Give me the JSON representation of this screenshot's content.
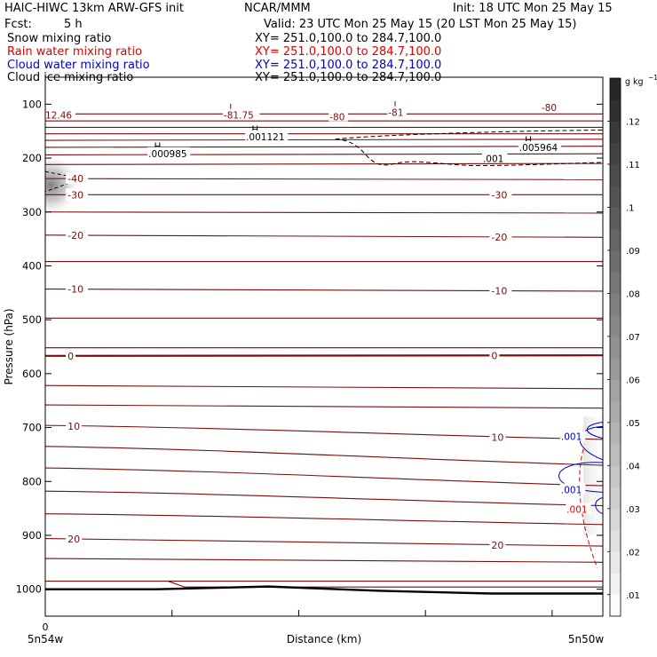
{
  "header": {
    "model": "HAIC-HIWC 13km ARW-GFS init",
    "org": "NCAR/MMM",
    "init": "Init: 18 UTC Mon 25 May 15",
    "fcst_label": "Fcst:",
    "fcst_value": "5 h",
    "valid": "Valid: 23 UTC Mon 25 May 15 (20 LST Mon 25 May 15)"
  },
  "legend_lines": [
    {
      "name": "Snow mixing ratio",
      "xy": "XY= 251.0,100.0 to 284.7,100.0",
      "color": "#000000"
    },
    {
      "name": "Rain water mixing ratio",
      "xy": "XY= 251.0,100.0 to 284.7,100.0",
      "color": "#dd0000"
    },
    {
      "name": "Cloud water mixing ratio",
      "xy": "XY= 251.0,100.0 to 284.7,100.0",
      "color": "#0000cc"
    },
    {
      "name": "Cloud ice mixing ratio",
      "xy": "XY= 251.0,100.0 to 284.7,100.0",
      "color": "#000000"
    }
  ],
  "chart_data": {
    "type": "cross-section",
    "ylabel": "Pressure (hPa)",
    "xlabel": "Distance (km)",
    "x_left_tick": "0",
    "x_left_label": "5n54w",
    "x_right_label": "5n50w",
    "y_ticks": [
      100,
      200,
      300,
      400,
      500,
      600,
      700,
      800,
      900,
      1000
    ],
    "ylim": [
      50,
      1050
    ],
    "temperature_color": "#7a0d0d",
    "temperature_isotherms": [
      {
        "p": [
          118,
          118
        ],
        "label_left": "",
        "label_right": ""
      },
      {
        "p": [
          131,
          131
        ],
        "label_left": "",
        "label_right": ""
      },
      {
        "p": [
          143,
          143
        ],
        "label_left": "",
        "label_right": ""
      },
      {
        "p": [
          155,
          155
        ],
        "label_left": "",
        "label_right": ""
      },
      {
        "p": [
          167,
          165
        ],
        "label_left": "",
        "label_right": ""
      },
      {
        "p": [
          180,
          178
        ],
        "label_left": "",
        "label_right": ""
      },
      {
        "p": [
          194,
          192
        ],
        "label_left": "",
        "label_right": ""
      },
      {
        "p": [
          212,
          210
        ],
        "label_left": "",
        "label_right": ""
      },
      {
        "p": [
          238,
          240
        ],
        "label_left": "-40",
        "label_right": ""
      },
      {
        "p": [
          268,
          268
        ],
        "label_left": "-30",
        "label_right": "-30"
      },
      {
        "p": [
          300,
          302
        ],
        "label_left": "",
        "label_right": ""
      },
      {
        "p": [
          343,
          347
        ],
        "label_left": "-20",
        "label_right": "-20"
      },
      {
        "p": [
          392,
          392
        ],
        "label_left": "",
        "label_right": ""
      },
      {
        "p": [
          443,
          447
        ],
        "label_left": "-10",
        "label_right": "-10"
      },
      {
        "p": [
          497,
          497
        ],
        "label_left": "",
        "label_right": ""
      },
      {
        "p": [
          552,
          552
        ],
        "label_left": "",
        "label_right": ""
      },
      {
        "p": [
          567,
          566
        ],
        "label_left": "0",
        "label_right": "0",
        "bold": true
      },
      {
        "p": [
          622,
          628
        ],
        "label_left": "",
        "label_right": ""
      },
      {
        "p": [
          658,
          664
        ],
        "label_left": "",
        "label_right": ""
      },
      {
        "p": [
          696,
          722
        ],
        "label_left": "10",
        "label_right": "10"
      },
      {
        "p": [
          735,
          770
        ],
        "label_left": "",
        "label_right": ""
      },
      {
        "p": [
          775,
          808
        ],
        "label_left": "",
        "label_right": ""
      },
      {
        "p": [
          818,
          845
        ],
        "label_left": "",
        "label_right": ""
      },
      {
        "p": [
          860,
          880
        ],
        "label_left": "",
        "label_right": ""
      },
      {
        "p": [
          906,
          920
        ],
        "label_left": "20",
        "label_right": "20"
      },
      {
        "p": [
          943,
          950
        ],
        "label_left": "",
        "label_right": ""
      },
      {
        "p": [
          985,
          985
        ],
        "label_left": "",
        "label_right": ""
      }
    ],
    "annotations": [
      {
        "text": "12.46",
        "x_frac": 0.0,
        "p": 122
      },
      {
        "text": "L",
        "x_frac": 0.33,
        "p": 108
      },
      {
        "text": "-81.75",
        "x_frac": 0.32,
        "p": 122
      },
      {
        "text": "-80",
        "x_frac": 0.51,
        "p": 125
      },
      {
        "text": "L",
        "x_frac": 0.625,
        "p": 103
      },
      {
        "text": "-81",
        "x_frac": 0.615,
        "p": 117
      },
      {
        "text": "-80",
        "x_frac": 0.89,
        "p": 108
      },
      {
        "text": "H",
        "x_frac": 0.37,
        "p": 148
      },
      {
        "text": ".001121",
        "x_frac": 0.36,
        "p": 162
      },
      {
        "text": "H",
        "x_frac": 0.195,
        "p": 179
      },
      {
        "text": ".000985",
        "x_frac": 0.185,
        "p": 193
      },
      {
        "text": "H",
        "x_frac": 0.86,
        "p": 168
      },
      {
        "text": ".005964",
        "x_frac": 0.85,
        "p": 182
      },
      {
        "text": ".001",
        "x_frac": 0.785,
        "p": 202
      },
      {
        "text": ".001",
        "x_frac": 0.925,
        "p": 718
      },
      {
        "text": ".001",
        "x_frac": 0.925,
        "p": 817
      },
      {
        "text": ".001",
        "x_frac": 0.935,
        "p": 853
      }
    ],
    "surface_p": [
      1000,
      1000,
      995,
      1003,
      1008,
      1008
    ],
    "colorbar": {
      "unit": "g kg",
      "unit_sup": "−1",
      "ticks": [
        ".01",
        ".02",
        ".03",
        ".04",
        ".05",
        ".06",
        ".07",
        ".08",
        ".09",
        ".1",
        ".11",
        ".12"
      ],
      "min": 0.005,
      "max": 0.13
    }
  }
}
